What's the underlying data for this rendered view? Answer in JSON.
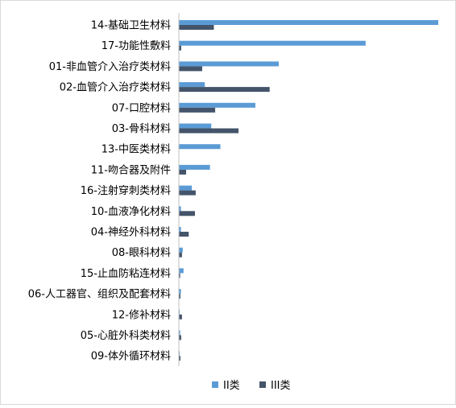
{
  "chart_data": {
    "type": "bar",
    "orientation": "horizontal",
    "title": "",
    "xlabel": "",
    "ylabel": "",
    "categories": [
      "14-基础卫生材料",
      "17-功能性敷料",
      "01-非血管介入治疗类材料",
      "02-血管介入治疗类材料",
      "07-口腔材料",
      "03-骨科材料",
      "13-中医类材料",
      "11-吻合器及附件",
      "16-注射穿刺类材料",
      "10-血液净化材料",
      "04-神经外科材料",
      "08-眼科材料",
      "15-止血防粘连材料",
      "06-人工器官、组织及配套材料",
      "12-修补材料",
      "05-心脏外科类材料",
      "09-体外循环材料"
    ],
    "series": [
      {
        "name": "II类",
        "color": "#5b9bd5",
        "values": [
          100,
          72,
          38.5,
          10,
          29.5,
          12.5,
          16,
          12,
          5,
          0.8,
          0.8,
          1.5,
          1.8,
          0.8,
          0.3,
          0.5,
          0.3
        ]
      },
      {
        "name": "III类",
        "color": "#44546a",
        "values": [
          13.5,
          0.9,
          9,
          35,
          14,
          23,
          0,
          2.8,
          6.5,
          6.2,
          3.8,
          1.2,
          0.5,
          0.6,
          1.2,
          0.9,
          0.6
        ]
      }
    ],
    "xlim": [
      0,
      100
    ],
    "grid": false,
    "legend_position": "bottom"
  }
}
